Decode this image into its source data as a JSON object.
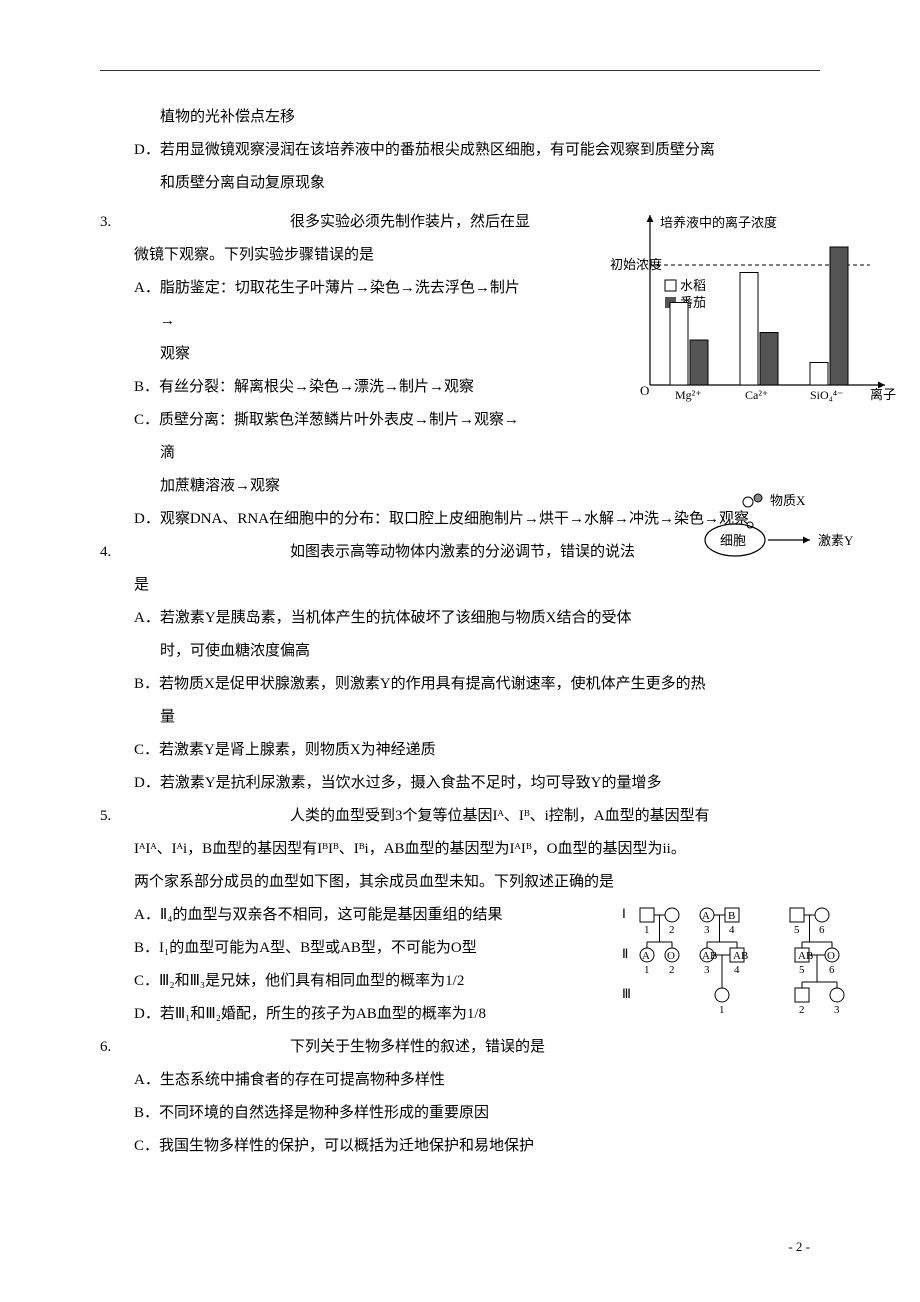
{
  "continuation": {
    "line1": "植物的光补偿点左移",
    "optD_l1": "D．若用显微镜观察浸润在该培养液中的番茄根尖成熟区细胞，有可能会观察到质壁分离",
    "optD_l2": "和质壁分离自动复原现象"
  },
  "q3": {
    "num": "3.",
    "stem_l1": "很多实验必须先制作装片，然后在显",
    "stem_l2": "微镜下观察。下列实验步骤错误的是",
    "optA_l1": "A．脂肪鉴定：切取花生子叶薄片→染色→洗去浮色→制片→",
    "optA_l2": "观察",
    "optB": "B．有丝分裂：解离根尖→染色→漂洗→制片→观察",
    "optC_l1": "C．质壁分离：撕取紫色洋葱鳞片叶外表皮→制片→观察→滴",
    "optC_l2": "加蔗糖溶液→观察",
    "optD": "D．观察DNA、RNA在细胞中的分布：取口腔上皮细胞制片→烘干→水解→冲洗→染色→观察"
  },
  "q4": {
    "num": "4.",
    "stem_l1": "如图表示高等动物体内激素的分泌调节，错误的说法",
    "stem_l2": "是",
    "optA_l1": "A．若激素Y是胰岛素，当机体产生的抗体破坏了该细胞与物质X结合的受体",
    "optA_l2": "时，可使血糖浓度偏高",
    "optB_l1": "B．若物质X是促甲状腺激素，则激素Y的作用具有提高代谢速率，使机体产生更多的热",
    "optB_l2": "量",
    "optC": "C．若激素Y是肾上腺素，则物质X为神经递质",
    "optD": "D．若激素Y是抗利尿激素，当饮水过多，摄入食盐不足时，均可导致Y的量增多"
  },
  "q5": {
    "num": "5.",
    "stem_l1": "人类的血型受到3个复等位基因Iᴬ、Iᴮ、i控制，A血型的基因型有",
    "stem_l2": "IᴬIᴬ、Iᴬi，B血型的基因型有IᴮIᴮ、Iᴮi，AB血型的基因型为IᴬIᴮ，O血型的基因型为ii。",
    "stem_l3": "两个家系部分成员的血型如下图，其余成员血型未知。下列叙述正确的是",
    "optA": "A．Ⅱ₄的血型与双亲各不相同，这可能是基因重组的结果",
    "optB": "B．I₁的血型可能为A型、B型或AB型，不可能为O型",
    "optC": "C．Ⅲ₂和Ⅲ₃是兄妹，他们具有相同血型的概率为1/2",
    "optD": "D．若Ⅲ₁和Ⅲ₂婚配，所生的孩子为AB血型的概率为1/8"
  },
  "q6": {
    "num": "6.",
    "stem": "下列关于生物多样性的叙述，错误的是",
    "optA": "A．生态系统中捕食者的存在可提高物种多样性",
    "optB": "B．不同环境的自然选择是物种多样性形成的重要原因",
    "optC": "C．我国生物多样性的保护，可以概括为迁地保护和易地保护"
  },
  "footer": "- 2 -",
  "chart1": {
    "y_axis_label": "培养液中的离子浓度",
    "y_ref_label": "初始浓度",
    "legend1": "水稻",
    "legend2": "番茄",
    "x_labels": [
      "Mg²⁺",
      "Ca²⁺",
      "SiO₄⁴⁻"
    ],
    "x_axis_label": "离子",
    "origin": "O",
    "rice_vals": [
      0.55,
      0.75,
      0.15
    ],
    "tomato_vals": [
      0.3,
      0.35,
      0.92
    ],
    "colors": {
      "rice": "#ffffff",
      "tomato": "#555555",
      "axis": "#000",
      "dash": "#000"
    }
  },
  "diagram2": {
    "substance_x": "物质X",
    "cell": "细胞",
    "hormone_y": "激素Y"
  },
  "pedigree": {
    "gen_labels": [
      "Ⅰ",
      "Ⅱ",
      "Ⅲ"
    ],
    "gen1_nums": [
      "1",
      "2",
      "3",
      "4",
      "5",
      "6"
    ],
    "gen2_nums": [
      "1",
      "2",
      "3",
      "4",
      "5",
      "6"
    ],
    "gen3_nums": [
      "1",
      "2",
      "3"
    ],
    "gen1_types": [
      "",
      "",
      "A",
      "B",
      "",
      ""
    ],
    "gen2_types": [
      "A",
      "O",
      "AB",
      "AB",
      "AB",
      "O"
    ]
  }
}
